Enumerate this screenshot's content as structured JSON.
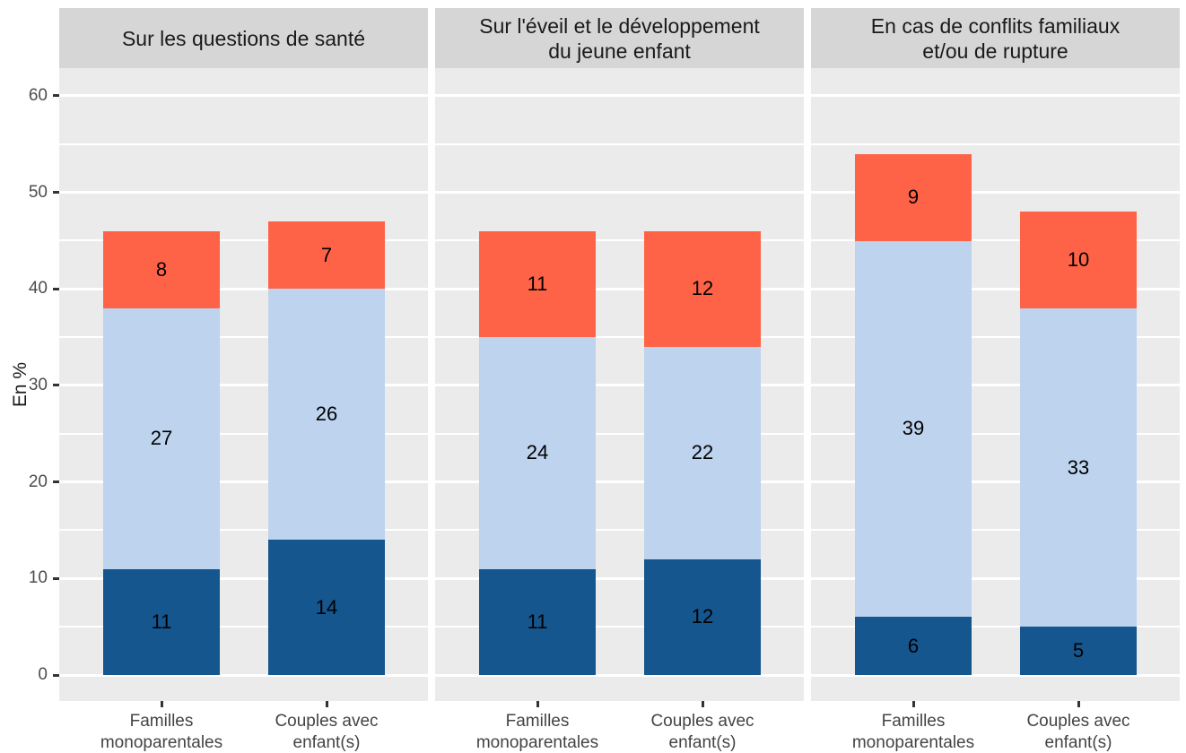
{
  "chart_data": {
    "type": "bar",
    "stacked": true,
    "faceted": true,
    "title": "",
    "ylabel": "En %",
    "ylim": [
      0,
      63
    ],
    "yticks": [
      0,
      10,
      20,
      30,
      40,
      50,
      60
    ],
    "yminor": [
      5,
      15,
      25,
      35,
      45,
      55
    ],
    "grid": "white major and minor horizontal gridlines on grey panel",
    "legend_position": "none",
    "categories": [
      "Familles\nmonoparentales",
      "Couples avec\nenfant(s)"
    ],
    "segment_order": [
      "bottom",
      "middle",
      "top"
    ],
    "colors": {
      "bottom": "#15568E",
      "middle": "#BDD3EE",
      "top": "#FF6347",
      "panel_bg": "#EBEBEB",
      "strip_bg": "#D6D6D6",
      "gridline": "#FFFFFF",
      "tick_text": "#4D4D4D",
      "value_text": "#000000"
    },
    "facets": [
      {
        "title": "Sur les questions de santé",
        "bars": [
          {
            "category": "Familles\nmonoparentales",
            "segments": {
              "bottom": 11,
              "middle": 27,
              "top": 8
            },
            "total": 46
          },
          {
            "category": "Couples avec\nenfant(s)",
            "segments": {
              "bottom": 14,
              "middle": 26,
              "top": 7
            },
            "total": 47
          }
        ]
      },
      {
        "title": "Sur l'éveil et le développement\ndu jeune enfant",
        "bars": [
          {
            "category": "Familles\nmonoparentales",
            "segments": {
              "bottom": 11,
              "middle": 24,
              "top": 11
            },
            "total": 46
          },
          {
            "category": "Couples avec\nenfant(s)",
            "segments": {
              "bottom": 12,
              "middle": 22,
              "top": 12
            },
            "total": 46
          }
        ]
      },
      {
        "title": "En cas de conflits familiaux\net/ou de rupture",
        "bars": [
          {
            "category": "Familles\nmonoparentales",
            "segments": {
              "bottom": 6,
              "middle": 39,
              "top": 9
            },
            "total": 54
          },
          {
            "category": "Couples avec\nenfant(s)",
            "segments": {
              "bottom": 5,
              "middle": 33,
              "top": 10
            },
            "total": 48
          }
        ]
      }
    ]
  }
}
